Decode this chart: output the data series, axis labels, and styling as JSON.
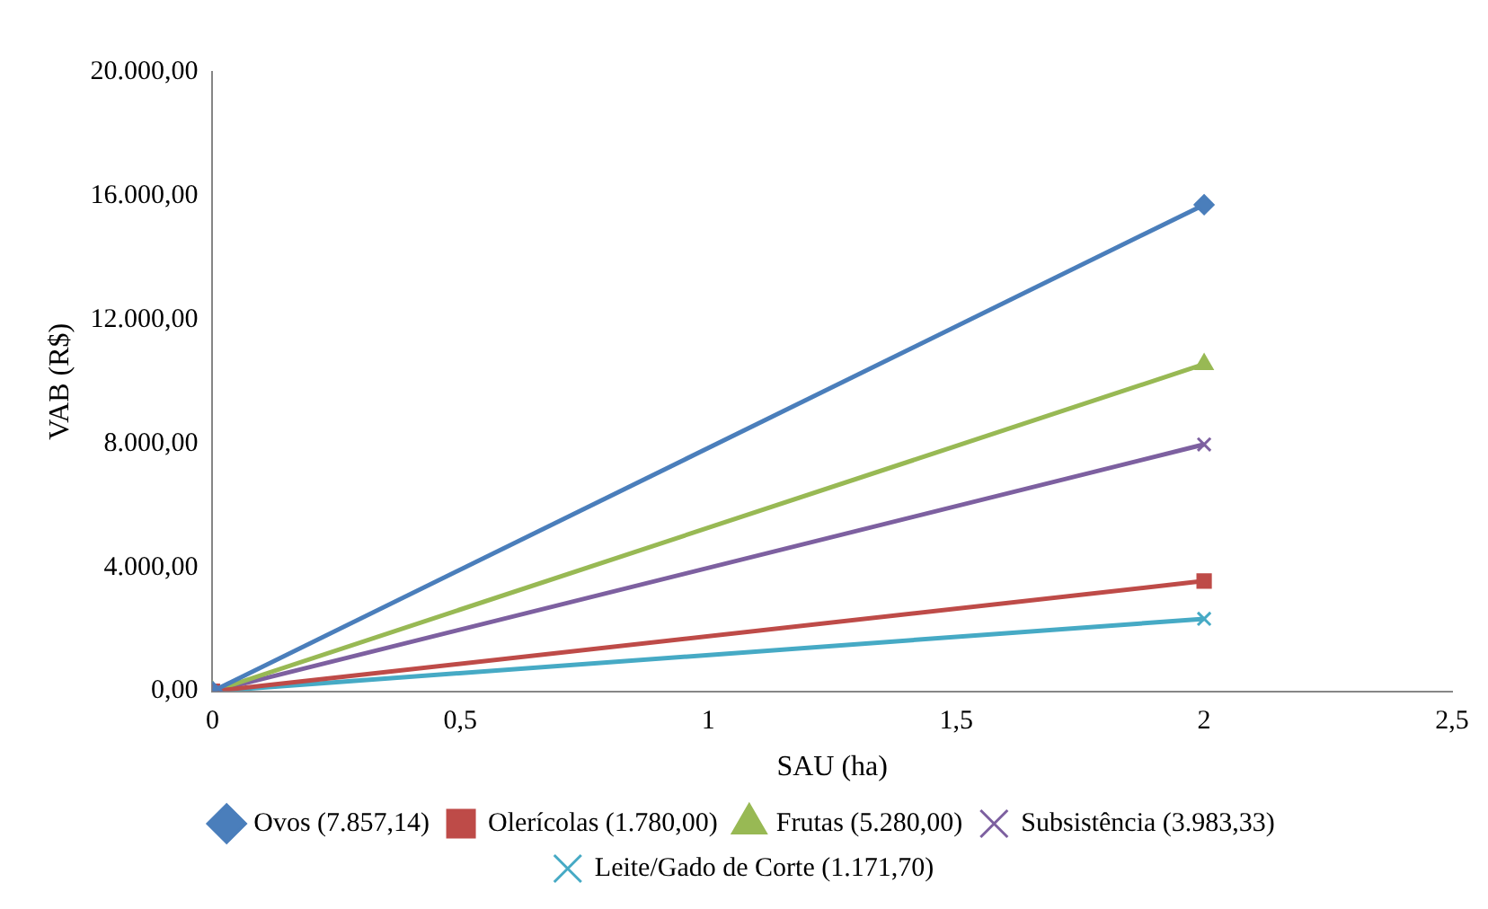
{
  "chart_data": {
    "type": "line",
    "xlabel": "SAU (ha)",
    "ylabel": "VAB (R$)",
    "x": [
      0,
      2
    ],
    "series": [
      {
        "name": "Ovos (7.857,14)",
        "color": "#4a7ebb",
        "values": [
          0,
          15710
        ],
        "marker": "diamond"
      },
      {
        "name": "Olerícolas (1.780,00)",
        "color": "#be4b48",
        "values": [
          0,
          3560
        ],
        "marker": "square"
      },
      {
        "name": "Frutas (5.280,00)",
        "color": "#98b954",
        "values": [
          0,
          10560
        ],
        "marker": "triangle"
      },
      {
        "name": "Subsistência (3.983,33)",
        "color": "#7d60a0",
        "values": [
          0,
          7970
        ],
        "marker": "cross"
      },
      {
        "name": "Leite/Gado de Corte (1.171,70)",
        "color": "#46aac5",
        "values": [
          0,
          2340
        ],
        "marker": "cross"
      }
    ],
    "xlim": [
      0,
      2.5
    ],
    "xticks": [
      0,
      {
        "value": 0.5,
        "label": "0,5"
      },
      1,
      {
        "value": 1.5,
        "label": "1,5"
      },
      2,
      {
        "value": 2.5,
        "label": "2,5"
      }
    ],
    "ylim": [
      0,
      20000
    ],
    "yticks": [
      {
        "value": 0,
        "label": "0,00"
      },
      {
        "value": 4000,
        "label": "4.000,00"
      },
      {
        "value": 8000,
        "label": "8.000,00"
      },
      {
        "value": 12000,
        "label": "12.000,00"
      },
      {
        "value": 16000,
        "label": "16.000,00"
      },
      {
        "value": 20000,
        "label": "20.000,00"
      }
    ],
    "grid": false,
    "legend": "bottom",
    "line_style": "solid"
  }
}
